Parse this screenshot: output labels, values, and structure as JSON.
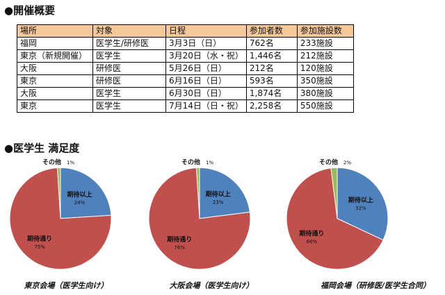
{
  "headings": {
    "overview": "●開催概要",
    "satisfaction": "●医学生 満足度"
  },
  "table": {
    "columns": [
      "場所",
      "対象",
      "日程",
      "参加者数",
      "参加施設数"
    ],
    "rows": [
      [
        "福岡",
        "医学生/研修医",
        "3月3日（日）",
        "762名",
        "233施設"
      ],
      [
        "東京（新規開催）",
        "医学生",
        "3月20日（水・祝）",
        "1,446名",
        "212施設"
      ],
      [
        "大阪",
        "研修医",
        "5月26日（日）",
        "212名",
        "120施設"
      ],
      [
        "東京",
        "研修医",
        "6月16日（日）",
        "593名",
        "350施設"
      ],
      [
        "大阪",
        "医学生",
        "6月30日（日）",
        "1,874名",
        "380施設"
      ],
      [
        "東京",
        "医学生",
        "7月14日（日・祝）",
        "2,258名",
        "550施設"
      ]
    ],
    "header_color": "#f5c89a"
  },
  "chart_data": [
    {
      "type": "pie",
      "caption": "東京会場（医学生向け）",
      "labels": [
        "期待以上",
        "期待通り",
        "その他"
      ],
      "values": [
        24,
        75,
        1
      ],
      "value_labels": [
        "24%",
        "75%",
        "1%"
      ],
      "colors": [
        "#4f81bd",
        "#c0504d",
        "#9bbb59"
      ]
    },
    {
      "type": "pie",
      "caption": "大阪会場（医学生向け）",
      "labels": [
        "期待以上",
        "期待通り",
        "その他"
      ],
      "values": [
        23,
        76,
        1
      ],
      "value_labels": [
        "23%",
        "76%",
        "1%"
      ],
      "colors": [
        "#4f81bd",
        "#c0504d",
        "#9bbb59"
      ]
    },
    {
      "type": "pie",
      "caption": "福岡会場（研修医/医学生合同）",
      "labels": [
        "期待以上",
        "期待通り",
        "その他"
      ],
      "values": [
        32,
        66,
        2
      ],
      "value_labels": [
        "32%",
        "66%",
        "2%"
      ],
      "colors": [
        "#4f81bd",
        "#c0504d",
        "#9bbb59"
      ]
    }
  ]
}
